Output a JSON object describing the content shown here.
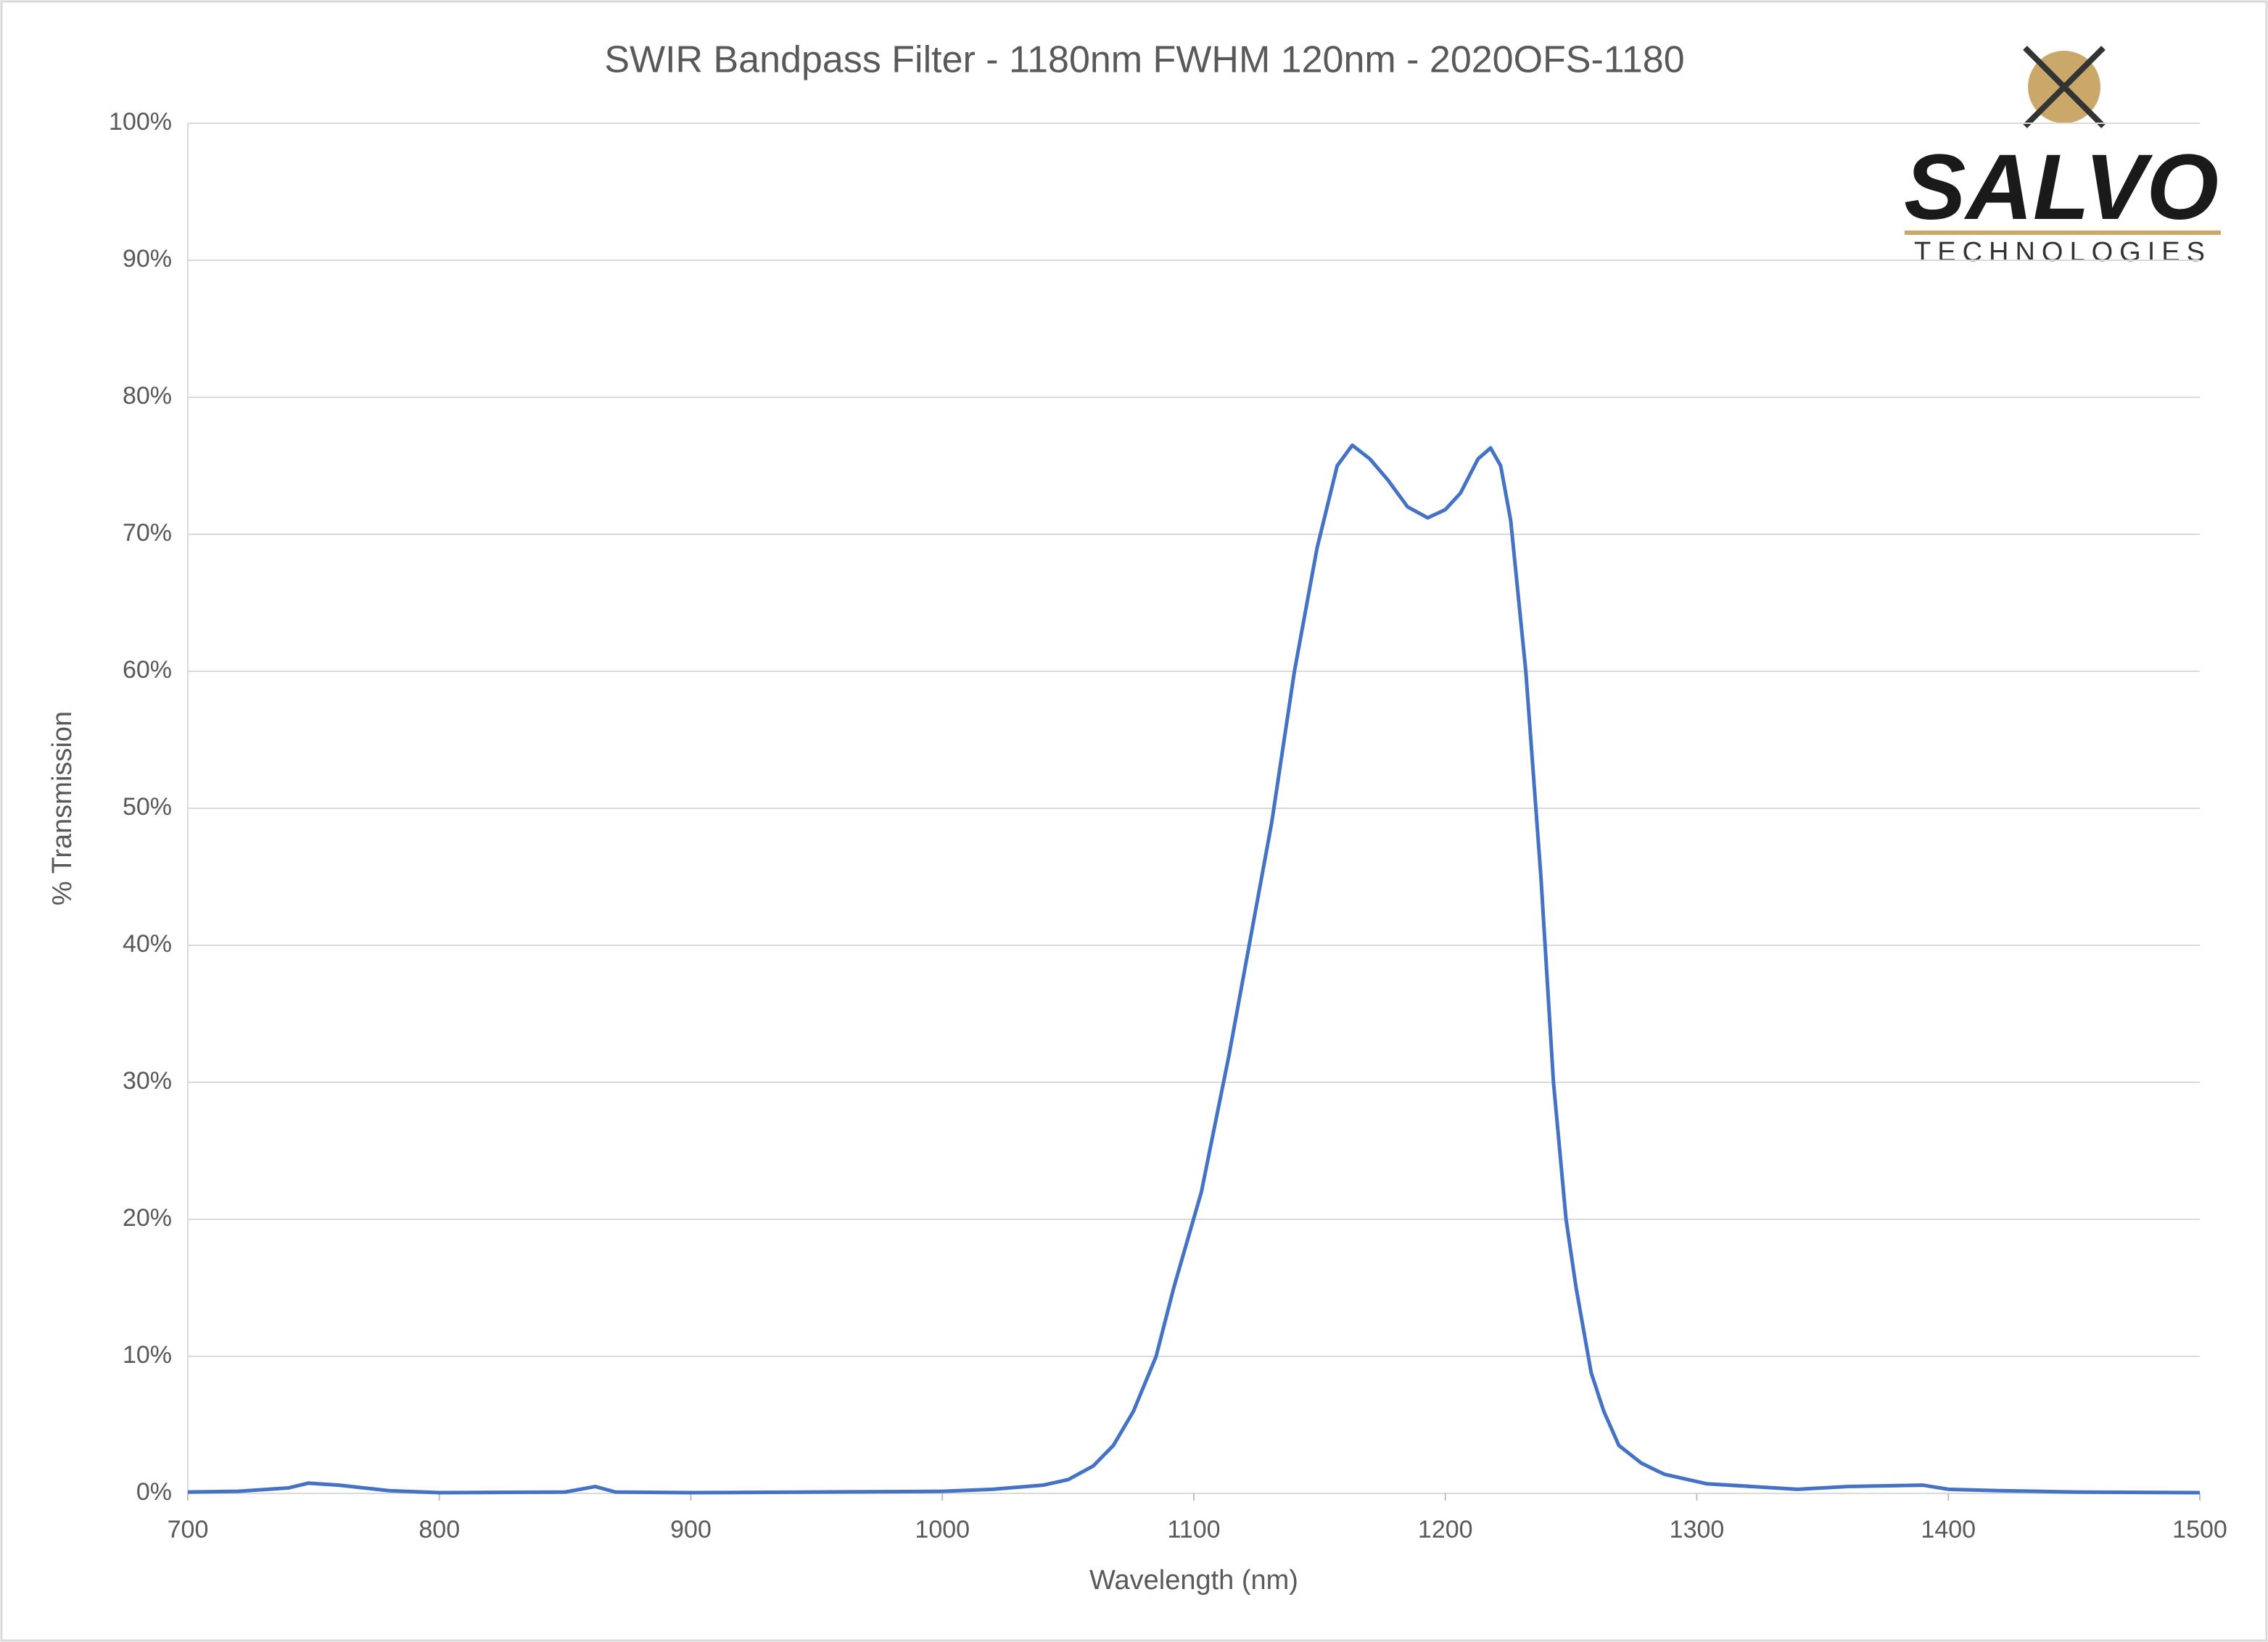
{
  "chart_data": {
    "type": "line",
    "title": "SWIR Bandpass Filter - 1180nm FWHM 120nm - 2020OFS-1180",
    "x_label": "Wavelength (nm)",
    "y_label": "% Transmission",
    "x": [
      700,
      720,
      740,
      748,
      760,
      780,
      800,
      850,
      862,
      870,
      900,
      950,
      1000,
      1020,
      1040,
      1050,
      1060,
      1068,
      1076,
      1085,
      1092,
      1103,
      1114,
      1131,
      1140,
      1149,
      1157,
      1163,
      1170,
      1177,
      1185,
      1193,
      1200,
      1206,
      1213,
      1218,
      1222,
      1226,
      1232,
      1238,
      1243,
      1248,
      1252,
      1258,
      1263,
      1269,
      1278,
      1287,
      1304,
      1340,
      1360,
      1390,
      1400,
      1420,
      1450,
      1500
    ],
    "series": [
      {
        "name": "% Transmission",
        "color": "#4472c4",
        "values": [
          0.1,
          0.15,
          0.4,
          0.75,
          0.6,
          0.2,
          0.05,
          0.1,
          0.5,
          0.1,
          0.05,
          0.1,
          0.15,
          0.3,
          0.6,
          1.0,
          2.0,
          3.5,
          6.0,
          10,
          15,
          22,
          32,
          49,
          60,
          69,
          75,
          76.5,
          75.5,
          74,
          72,
          71.2,
          71.8,
          73,
          75.5,
          76.3,
          75,
          71,
          60,
          45,
          30,
          20,
          15,
          8.8,
          6,
          3.5,
          2.2,
          1.4,
          0.7,
          0.3,
          0.5,
          0.6,
          0.3,
          0.2,
          0.1,
          0.05
        ]
      }
    ],
    "xlim": [
      700,
      1500
    ],
    "xticks": [
      700,
      800,
      900,
      1000,
      1100,
      1200,
      1300,
      1400,
      1500
    ],
    "ylim": [
      0,
      100
    ],
    "yticks": [
      {
        "value": 0,
        "label": "0%"
      },
      {
        "value": 10,
        "label": "10%"
      },
      {
        "value": 20,
        "label": "20%"
      },
      {
        "value": 30,
        "label": "30%"
      },
      {
        "value": 40,
        "label": "40%"
      },
      {
        "value": 50,
        "label": "50%"
      },
      {
        "value": 60,
        "label": "60%"
      },
      {
        "value": 70,
        "label": "70%"
      },
      {
        "value": 80,
        "label": "80%"
      },
      {
        "value": 90,
        "label": "90%"
      },
      {
        "value": 100,
        "label": "100%"
      }
    ],
    "grid": true
  },
  "logo": {
    "name": "SALVO",
    "tagline": "TECHNOLOGIES"
  }
}
